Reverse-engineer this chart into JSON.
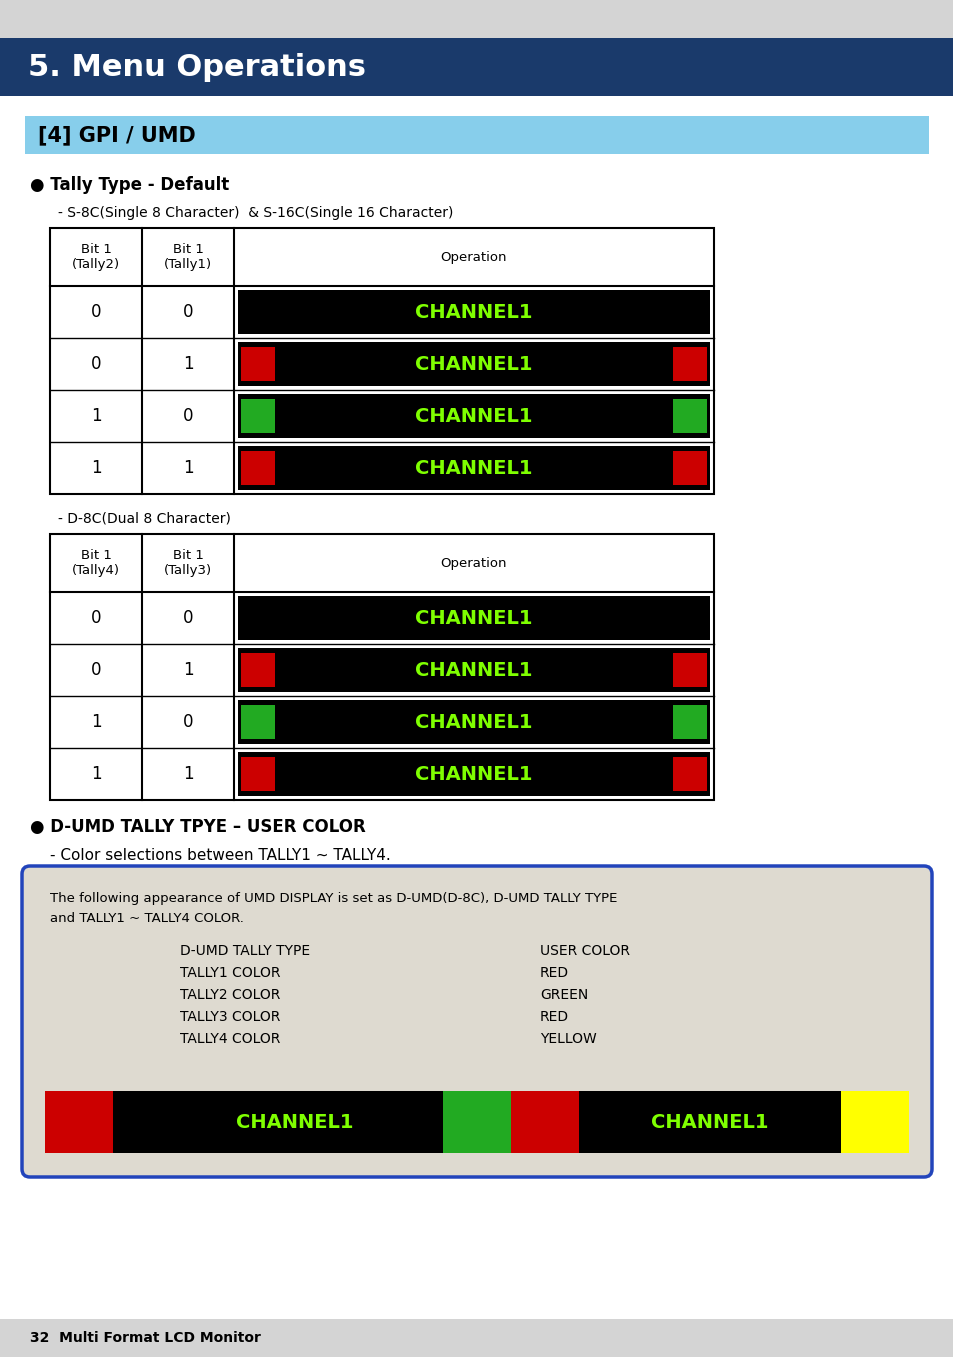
{
  "page_bg": "#d4d4d4",
  "header_bg": "#1a3a6b",
  "header_text": "5. Menu Operations",
  "header_text_color": "#ffffff",
  "subheader_bg": "#87ceeb",
  "subheader_text": "[4] GPI / UMD",
  "subheader_text_color": "#000000",
  "section1_title": "● Tally Type - Default",
  "section1_sub": "- S-8C(Single 8 Character)  & S-16C(Single 16 Character)",
  "table1_col1_header": "Bit 1\n(Tally2)",
  "table1_col2_header": "Bit 1\n(Tally1)",
  "table1_col3_header": "Operation",
  "table1_rows": [
    {
      "bit2": "0",
      "bit1": "0",
      "mode": "black_only"
    },
    {
      "bit2": "0",
      "bit1": "1",
      "mode": "red"
    },
    {
      "bit2": "1",
      "bit1": "0",
      "mode": "green"
    },
    {
      "bit2": "1",
      "bit1": "1",
      "mode": "red"
    }
  ],
  "section2_sub": "- D-8C(Dual 8 Character)",
  "table2_col1_header": "Bit 1\n(Tally4)",
  "table2_col2_header": "Bit 1\n(Tally3)",
  "table2_col3_header": "Operation",
  "table2_rows": [
    {
      "bit2": "0",
      "bit1": "0",
      "mode": "black_only"
    },
    {
      "bit2": "0",
      "bit1": "1",
      "mode": "red"
    },
    {
      "bit2": "1",
      "bit1": "0",
      "mode": "green"
    },
    {
      "bit2": "1",
      "bit1": "1",
      "mode": "red"
    }
  ],
  "section3_title": "● D-UMD TALLY TPYE – USER COLOR",
  "section3_sub": "- Color selections between TALLY1 ~ TALLY4.",
  "box_text_line1": "The following appearance of UMD DISPLAY is set as D-UMD(D-8C), D-UMD TALLY TYPE",
  "box_text_line2": "and TALLY1 ~ TALLY4 COLOR.",
  "box_table_left": [
    "D-UMD TALLY TYPE",
    "TALLY1 COLOR",
    "TALLY2 COLOR",
    "TALLY3 COLOR",
    "TALLY4 COLOR"
  ],
  "box_table_right": [
    "USER COLOR",
    "RED",
    "GREEN",
    "RED",
    "YELLOW"
  ],
  "channel_text": "CHANNEL1",
  "channel_green": "#7fff00",
  "red_color": "#cc0000",
  "green_color": "#22aa22",
  "yellow_color": "#ffff00",
  "footer_text": "32  Multi Format LCD Monitor"
}
